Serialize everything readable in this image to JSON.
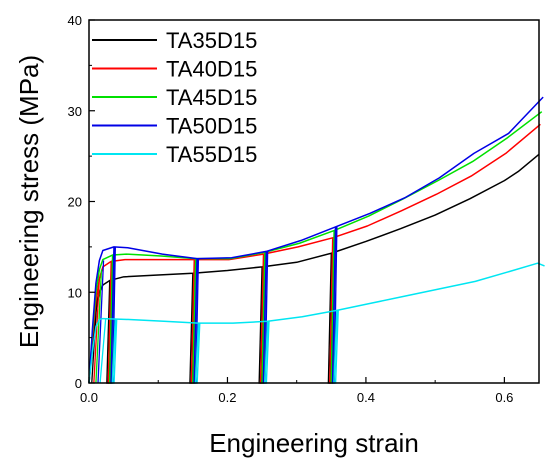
{
  "chart_data": {
    "type": "line",
    "title": "",
    "xlabel": "Engineering strain",
    "ylabel": "Engineering stress (MPa)",
    "xlim": [
      0.0,
      0.65
    ],
    "ylim": [
      0,
      40
    ],
    "x_ticks": [
      0.0,
      0.2,
      0.4,
      0.6
    ],
    "x_tick_labels": [
      "0.0",
      "0.2",
      "0.4",
      "0.6"
    ],
    "y_ticks": [
      0,
      10,
      20,
      30,
      40
    ],
    "y_tick_labels": [
      "0",
      "10",
      "20",
      "30",
      "40"
    ],
    "grid": false,
    "legend_position": "top-left",
    "series": [
      {
        "name": "TA35D15",
        "color": "#000000",
        "points": [
          [
            0,
            0
          ],
          [
            0.005,
            4
          ],
          [
            0.01,
            8
          ],
          [
            0.015,
            10
          ],
          [
            0.02,
            10.8
          ],
          [
            0.03,
            11.3
          ],
          [
            0.05,
            11.7
          ],
          [
            0.1,
            11.9
          ],
          [
            0.15,
            12.1
          ],
          [
            0.2,
            12.4
          ],
          [
            0.25,
            12.8
          ],
          [
            0.3,
            13.3
          ],
          [
            0.35,
            14.3
          ],
          [
            0.4,
            15.6
          ],
          [
            0.45,
            17.0
          ],
          [
            0.5,
            18.5
          ],
          [
            0.55,
            20.3
          ],
          [
            0.6,
            22.3
          ],
          [
            0.62,
            23.3
          ],
          [
            0.65,
            25.2
          ]
        ]
      },
      {
        "name": "TA40D15",
        "color": "#ff0000",
        "points": [
          [
            0,
            0
          ],
          [
            0.005,
            5
          ],
          [
            0.01,
            9
          ],
          [
            0.015,
            11.5
          ],
          [
            0.02,
            12.8
          ],
          [
            0.03,
            13.4
          ],
          [
            0.05,
            13.6
          ],
          [
            0.1,
            13.6
          ],
          [
            0.15,
            13.6
          ],
          [
            0.2,
            13.6
          ],
          [
            0.25,
            14.2
          ],
          [
            0.3,
            15.0
          ],
          [
            0.35,
            16.0
          ],
          [
            0.4,
            17.3
          ],
          [
            0.45,
            19.0
          ],
          [
            0.5,
            20.8
          ],
          [
            0.55,
            22.8
          ],
          [
            0.6,
            25.3
          ],
          [
            0.65,
            28.5
          ]
        ]
      },
      {
        "name": "TA45D15",
        "color": "#00e000",
        "points": [
          [
            0,
            0
          ],
          [
            0.005,
            5.5
          ],
          [
            0.01,
            10
          ],
          [
            0.015,
            12.5
          ],
          [
            0.02,
            13.6
          ],
          [
            0.03,
            14.1
          ],
          [
            0.05,
            14.2
          ],
          [
            0.1,
            14.0
          ],
          [
            0.15,
            13.7
          ],
          [
            0.2,
            13.7
          ],
          [
            0.25,
            14.4
          ],
          [
            0.3,
            15.4
          ],
          [
            0.35,
            16.8
          ],
          [
            0.4,
            18.4
          ],
          [
            0.45,
            20.3
          ],
          [
            0.5,
            22.3
          ],
          [
            0.55,
            24.4
          ],
          [
            0.6,
            27.0
          ],
          [
            0.65,
            29.9
          ]
        ]
      },
      {
        "name": "TA50D15",
        "color": "#0000e6",
        "points": [
          [
            0,
            0
          ],
          [
            0.005,
            6
          ],
          [
            0.01,
            11
          ],
          [
            0.015,
            13.5
          ],
          [
            0.02,
            14.6
          ],
          [
            0.03,
            15.0
          ],
          [
            0.05,
            14.9
          ],
          [
            0.1,
            14.2
          ],
          [
            0.15,
            13.7
          ],
          [
            0.2,
            13.8
          ],
          [
            0.25,
            14.5
          ],
          [
            0.3,
            15.7
          ],
          [
            0.35,
            17.2
          ],
          [
            0.4,
            18.7
          ],
          [
            0.45,
            20.4
          ],
          [
            0.5,
            22.6
          ],
          [
            0.55,
            25.3
          ],
          [
            0.6,
            27.5
          ],
          [
            0.65,
            31.5
          ]
        ]
      },
      {
        "name": "TA55D15",
        "color": "#00e6f2",
        "points": [
          [
            0,
            0
          ],
          [
            0.005,
            3.5
          ],
          [
            0.01,
            6.2
          ],
          [
            0.015,
            7.0
          ],
          [
            0.02,
            7.1
          ],
          [
            0.05,
            7.0
          ],
          [
            0.1,
            6.8
          ],
          [
            0.15,
            6.6
          ],
          [
            0.2,
            6.6
          ],
          [
            0.25,
            6.8
          ],
          [
            0.3,
            7.3
          ],
          [
            0.35,
            8.0
          ],
          [
            0.4,
            8.8
          ],
          [
            0.45,
            9.6
          ],
          [
            0.5,
            10.4
          ],
          [
            0.55,
            11.2
          ],
          [
            0.6,
            12.3
          ],
          [
            0.64,
            13.2
          ],
          [
            0.65,
            12.9
          ]
        ]
      }
    ],
    "unload_reload_strains": [
      0.03,
      0.15,
      0.25,
      0.35
    ]
  }
}
